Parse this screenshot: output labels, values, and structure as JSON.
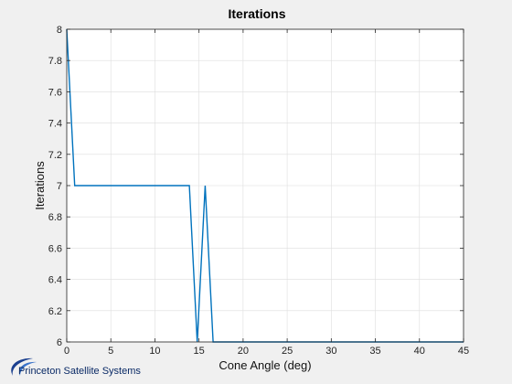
{
  "chart_data": {
    "type": "line",
    "title": "Iterations",
    "xlabel": "Cone Angle (deg)",
    "ylabel": "Iterations",
    "xlim": [
      0,
      45
    ],
    "ylim": [
      6,
      8
    ],
    "xticks": [
      0,
      5,
      10,
      15,
      20,
      25,
      30,
      35,
      40,
      45
    ],
    "yticks": [
      6,
      6.2,
      6.4,
      6.6,
      6.8,
      7,
      7.2,
      7.4,
      7.6,
      7.8,
      8
    ],
    "ytick_labels": [
      "6",
      "6.2",
      "6.4",
      "6.6",
      "6.8",
      "7",
      "7.2",
      "7.4",
      "7.6",
      "7.8",
      "8"
    ],
    "grid": true,
    "series": [
      {
        "color": "#0072bd",
        "x": [
          0,
          0.9,
          13.9,
          14.8,
          15.7,
          16.6,
          45
        ],
        "y": [
          8,
          7,
          7,
          6,
          7,
          6,
          6
        ]
      }
    ]
  },
  "footer": {
    "company": "Princeton Satellite Systems",
    "logo_icon": "swoosh-logo-icon",
    "logo_color": "#1a3f8f"
  }
}
